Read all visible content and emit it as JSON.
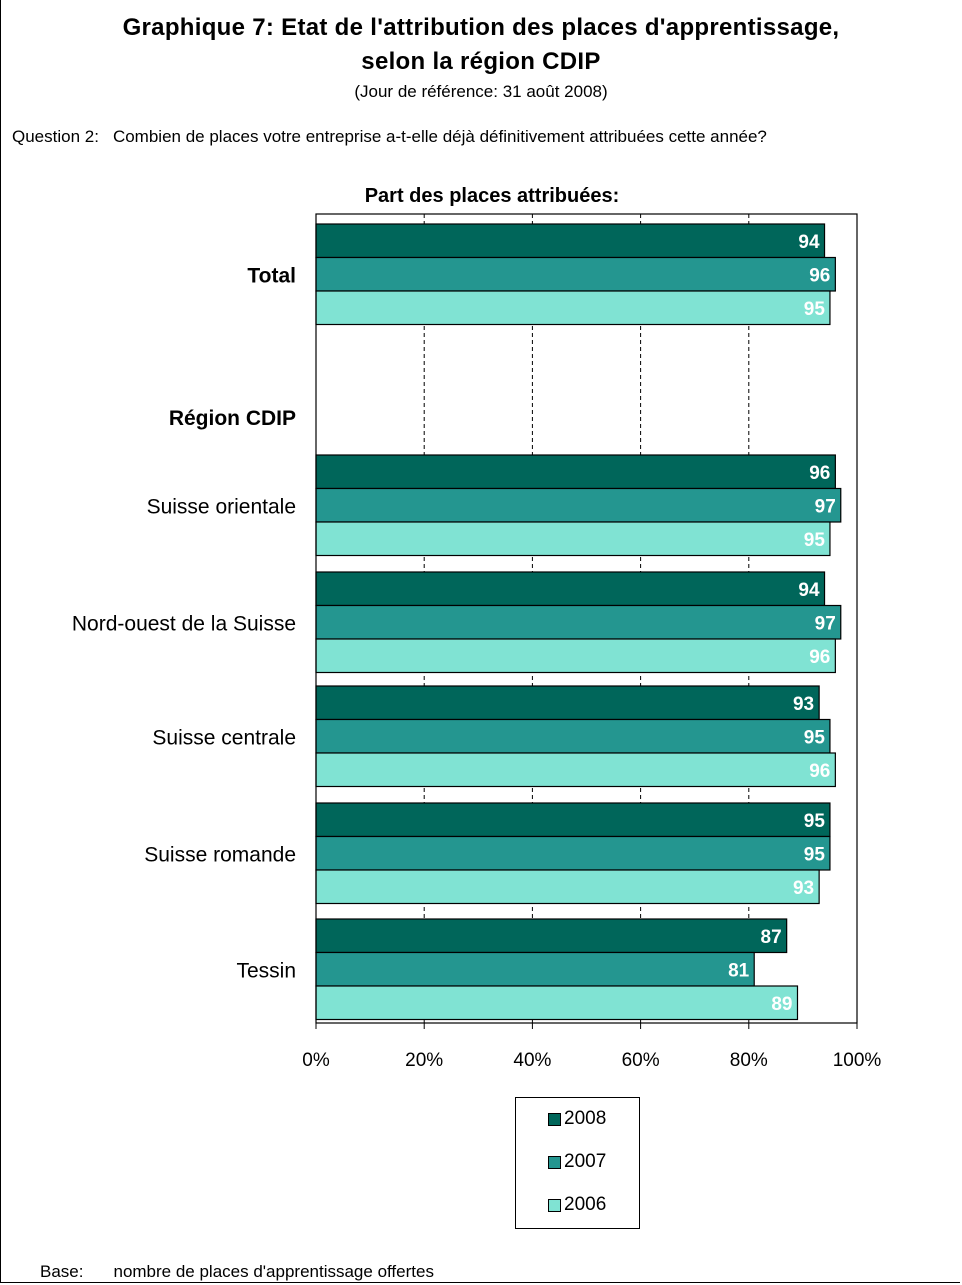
{
  "title_line1": "Graphique 7: Etat de l'attribution des places d'apprentissage,",
  "title_line2": "selon la région CDIP",
  "subtitle": "(Jour de référence: 31 août 2008)",
  "question_label": "Question 2:",
  "question_text": "Combien de places votre entreprise a-t-elle déjà définitivement attribuées cette année?",
  "footnote_label": "Base:",
  "footnote_text": "nombre de places d'apprentissage offertes",
  "colors": {
    "2008": "#00665a",
    "2007": "#249690",
    "2006": "#80e3d3"
  },
  "chart_data": {
    "type": "bar",
    "orientation": "horizontal",
    "title": "Part des places attribuées:",
    "section_label": "Région CDIP",
    "categories": [
      "Total",
      "Suisse orientale",
      "Nord-ouest de la Suisse",
      "Suisse centrale",
      "Suisse romande",
      "Tessin"
    ],
    "series": [
      {
        "name": "2008",
        "values": [
          94,
          96,
          94,
          93,
          95,
          87
        ]
      },
      {
        "name": "2007",
        "values": [
          96,
          97,
          97,
          95,
          95,
          81
        ]
      },
      {
        "name": "2006",
        "values": [
          95,
          95,
          96,
          96,
          93,
          89
        ]
      }
    ],
    "xlim": [
      0,
      100
    ],
    "xticks": [
      "0%",
      "20%",
      "40%",
      "60%",
      "80%",
      "100%"
    ],
    "grid": "vertical dashed",
    "legend": "bottom",
    "data_labels": true
  }
}
